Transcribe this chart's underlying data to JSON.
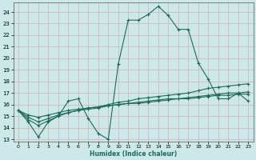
{
  "xlabel": "Humidex (Indice chaleur)",
  "bg_color": "#cce8e8",
  "grid_color": "#d4b8b8",
  "line_color": "#1a6b5a",
  "xlim": [
    -0.5,
    23.5
  ],
  "ylim": [
    12.8,
    24.8
  ],
  "yticks": [
    13,
    14,
    15,
    16,
    17,
    18,
    19,
    20,
    21,
    22,
    23,
    24
  ],
  "xticks": [
    0,
    1,
    2,
    3,
    4,
    5,
    6,
    7,
    8,
    9,
    10,
    11,
    12,
    13,
    14,
    15,
    16,
    17,
    18,
    19,
    20,
    21,
    22,
    23
  ],
  "series1_x": [
    0,
    1,
    2,
    3,
    4,
    5,
    6,
    7,
    8,
    9,
    10,
    11,
    12,
    13,
    14,
    15,
    16,
    17,
    18,
    19,
    20,
    21,
    22,
    23
  ],
  "series1_y": [
    15.5,
    14.5,
    13.2,
    14.5,
    15.0,
    16.3,
    16.5,
    14.8,
    13.5,
    13.0,
    19.5,
    23.3,
    23.3,
    23.8,
    24.5,
    23.7,
    22.5,
    22.5,
    19.6,
    18.2,
    16.5,
    16.5,
    17.0,
    16.3
  ],
  "series2_x": [
    0,
    1,
    2,
    3,
    4,
    5,
    6,
    7,
    8,
    9,
    10,
    11,
    12,
    13,
    14,
    15,
    16,
    17,
    18,
    19,
    20,
    21,
    22,
    23
  ],
  "series2_y": [
    15.5,
    14.7,
    14.2,
    14.6,
    15.0,
    15.3,
    15.5,
    15.7,
    15.8,
    16.0,
    16.2,
    16.3,
    16.5,
    16.6,
    16.7,
    16.8,
    16.9,
    17.0,
    17.2,
    17.4,
    17.5,
    17.6,
    17.7,
    17.8
  ],
  "series3_x": [
    0,
    1,
    2,
    3,
    4,
    5,
    6,
    7,
    8,
    9,
    10,
    11,
    12,
    13,
    14,
    15,
    16,
    17,
    18,
    19,
    20,
    21,
    22,
    23
  ],
  "series3_y": [
    15.5,
    14.9,
    14.5,
    14.8,
    15.1,
    15.3,
    15.5,
    15.6,
    15.7,
    15.9,
    16.0,
    16.1,
    16.2,
    16.3,
    16.4,
    16.5,
    16.5,
    16.6,
    16.7,
    16.8,
    16.9,
    17.0,
    17.0,
    17.1
  ],
  "series4_x": [
    0,
    1,
    2,
    3,
    4,
    5,
    6,
    7,
    8,
    9,
    10,
    11,
    12,
    13,
    14,
    15,
    16,
    17,
    18,
    19,
    20,
    21,
    22,
    23
  ],
  "series4_y": [
    15.5,
    15.1,
    14.9,
    15.1,
    15.3,
    15.5,
    15.6,
    15.7,
    15.8,
    15.9,
    16.0,
    16.1,
    16.1,
    16.2,
    16.3,
    16.4,
    16.5,
    16.5,
    16.6,
    16.7,
    16.8,
    16.8,
    16.9,
    16.9
  ]
}
